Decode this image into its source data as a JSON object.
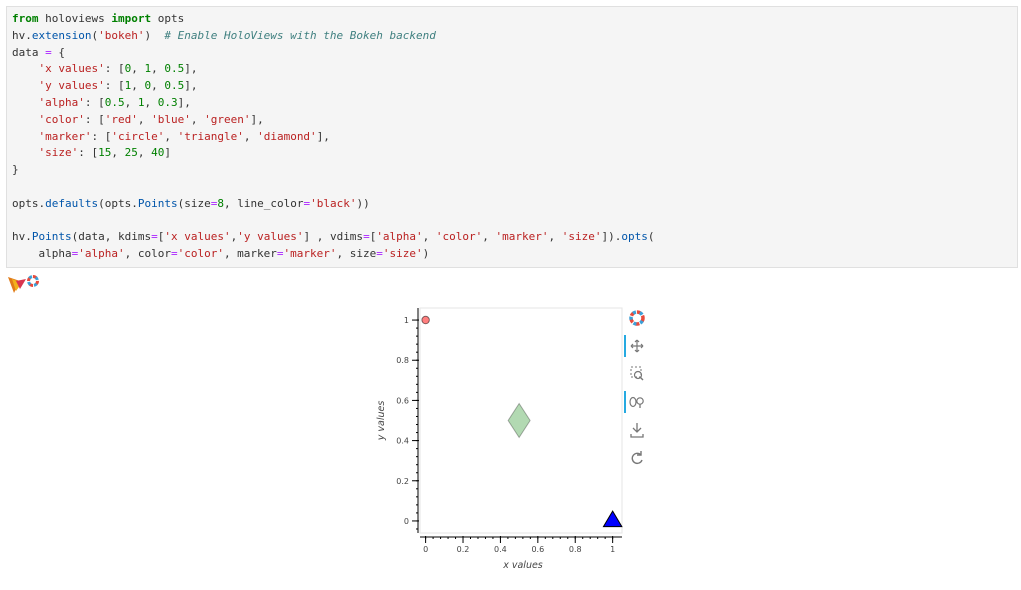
{
  "code": {
    "lines": [
      [
        [
          "kw",
          "from"
        ],
        [
          "plain",
          " holoviews "
        ],
        [
          "kw",
          "import"
        ],
        [
          "plain",
          " opts"
        ]
      ],
      [
        [
          "plain",
          "hv."
        ],
        [
          "fn",
          "extension"
        ],
        [
          "plain",
          "("
        ],
        [
          "str",
          "'bokeh'"
        ],
        [
          "plain",
          ")  "
        ],
        [
          "com",
          "# Enable HoloViews with the Bokeh backend"
        ]
      ],
      [
        [
          "plain",
          "data "
        ],
        [
          "op",
          "="
        ],
        [
          "plain",
          " {"
        ]
      ],
      [
        [
          "plain",
          "    "
        ],
        [
          "str",
          "'x values'"
        ],
        [
          "plain",
          ": ["
        ],
        [
          "num",
          "0"
        ],
        [
          "plain",
          ", "
        ],
        [
          "num",
          "1"
        ],
        [
          "plain",
          ", "
        ],
        [
          "num",
          "0.5"
        ],
        [
          "plain",
          "],"
        ]
      ],
      [
        [
          "plain",
          "    "
        ],
        [
          "str",
          "'y values'"
        ],
        [
          "plain",
          ": ["
        ],
        [
          "num",
          "1"
        ],
        [
          "plain",
          ", "
        ],
        [
          "num",
          "0"
        ],
        [
          "plain",
          ", "
        ],
        [
          "num",
          "0.5"
        ],
        [
          "plain",
          "],"
        ]
      ],
      [
        [
          "plain",
          "    "
        ],
        [
          "str",
          "'alpha'"
        ],
        [
          "plain",
          ": ["
        ],
        [
          "num",
          "0.5"
        ],
        [
          "plain",
          ", "
        ],
        [
          "num",
          "1"
        ],
        [
          "plain",
          ", "
        ],
        [
          "num",
          "0.3"
        ],
        [
          "plain",
          "],"
        ]
      ],
      [
        [
          "plain",
          "    "
        ],
        [
          "str",
          "'color'"
        ],
        [
          "plain",
          ": ["
        ],
        [
          "str",
          "'red'"
        ],
        [
          "plain",
          ", "
        ],
        [
          "str",
          "'blue'"
        ],
        [
          "plain",
          ", "
        ],
        [
          "str",
          "'green'"
        ],
        [
          "plain",
          "],"
        ]
      ],
      [
        [
          "plain",
          "    "
        ],
        [
          "str",
          "'marker'"
        ],
        [
          "plain",
          ": ["
        ],
        [
          "str",
          "'circle'"
        ],
        [
          "plain",
          ", "
        ],
        [
          "str",
          "'triangle'"
        ],
        [
          "plain",
          ", "
        ],
        [
          "str",
          "'diamond'"
        ],
        [
          "plain",
          "],"
        ]
      ],
      [
        [
          "plain",
          "    "
        ],
        [
          "str",
          "'size'"
        ],
        [
          "plain",
          ": ["
        ],
        [
          "num",
          "15"
        ],
        [
          "plain",
          ", "
        ],
        [
          "num",
          "25"
        ],
        [
          "plain",
          ", "
        ],
        [
          "num",
          "40"
        ],
        [
          "plain",
          "]"
        ]
      ],
      [
        [
          "plain",
          "}"
        ]
      ],
      [
        [
          "plain",
          ""
        ]
      ],
      [
        [
          "plain",
          "opts."
        ],
        [
          "fn",
          "defaults"
        ],
        [
          "plain",
          "(opts."
        ],
        [
          "fn",
          "Points"
        ],
        [
          "plain",
          "(size"
        ],
        [
          "op",
          "="
        ],
        [
          "num",
          "8"
        ],
        [
          "plain",
          ", line_color"
        ],
        [
          "op",
          "="
        ],
        [
          "str",
          "'black'"
        ],
        [
          "plain",
          "))"
        ]
      ],
      [
        [
          "plain",
          ""
        ]
      ],
      [
        [
          "plain",
          "hv."
        ],
        [
          "fn",
          "Points"
        ],
        [
          "plain",
          "(data, kdims"
        ],
        [
          "op",
          "="
        ],
        [
          "plain",
          "["
        ],
        [
          "str",
          "'x values'"
        ],
        [
          "plain",
          ","
        ],
        [
          "str",
          "'y values'"
        ],
        [
          "plain",
          "] , vdims"
        ],
        [
          "op",
          "="
        ],
        [
          "plain",
          "["
        ],
        [
          "str",
          "'alpha'"
        ],
        [
          "plain",
          ", "
        ],
        [
          "str",
          "'color'"
        ],
        [
          "plain",
          ", "
        ],
        [
          "str",
          "'marker'"
        ],
        [
          "plain",
          ", "
        ],
        [
          "str",
          "'size'"
        ],
        [
          "plain",
          "])."
        ],
        [
          "fn",
          "opts"
        ],
        [
          "plain",
          "("
        ]
      ],
      [
        [
          "plain",
          "    alpha"
        ],
        [
          "op",
          "="
        ],
        [
          "str",
          "'alpha'"
        ],
        [
          "plain",
          ", color"
        ],
        [
          "op",
          "="
        ],
        [
          "str",
          "'color'"
        ],
        [
          "plain",
          ", marker"
        ],
        [
          "op",
          "="
        ],
        [
          "str",
          "'marker'"
        ],
        [
          "plain",
          ", size"
        ],
        [
          "op",
          "="
        ],
        [
          "str",
          "'size'"
        ],
        [
          "plain",
          ")"
        ]
      ]
    ]
  },
  "chart_data": {
    "type": "scatter",
    "xlabel": "x values",
    "ylabel": "y values",
    "xlim": [
      -0.03,
      1.05
    ],
    "ylim": [
      -0.06,
      1.06
    ],
    "x_ticks": [
      0,
      0.2,
      0.4,
      0.6,
      0.8,
      1
    ],
    "x_tick_labels": [
      "0",
      "0.2",
      "0.4",
      "0.6",
      "0.8",
      "1"
    ],
    "y_ticks": [
      0,
      0.2,
      0.4,
      0.6,
      0.8,
      1
    ],
    "y_tick_labels": [
      "0",
      "0.2",
      "0.4",
      "0.6",
      "0.8",
      "1"
    ],
    "grid": false,
    "points": [
      {
        "x": 0,
        "y": 1,
        "alpha": 0.5,
        "color": "#ff0000",
        "marker": "circle",
        "size": 15
      },
      {
        "x": 1,
        "y": 0,
        "alpha": 1,
        "color": "#0000ff",
        "marker": "triangle",
        "size": 25
      },
      {
        "x": 0.5,
        "y": 0.5,
        "alpha": 0.3,
        "color": "#008000",
        "marker": "diamond",
        "size": 40
      }
    ]
  },
  "toolbar": {
    "tools": [
      "bokeh-logo-icon",
      "pan-icon",
      "box-zoom-icon",
      "wheel-zoom-icon",
      "save-icon",
      "reset-icon"
    ],
    "active_color": "#26aae1"
  }
}
